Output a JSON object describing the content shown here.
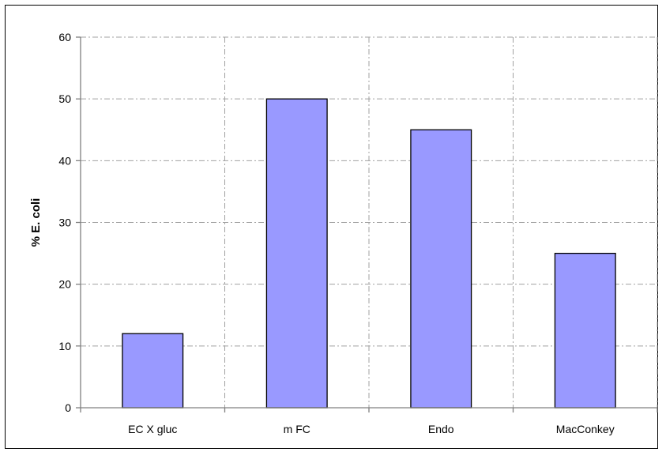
{
  "chart_data": {
    "type": "bar",
    "title": "",
    "xlabel": "",
    "ylabel": "% E. coli",
    "categories": [
      "EC X gluc",
      "m FC",
      "Endo",
      "MacConkey"
    ],
    "series": [
      {
        "values": [
          12,
          50,
          45,
          25
        ]
      }
    ],
    "ylim": [
      0,
      60
    ],
    "yticks": [
      0,
      10,
      20,
      30,
      40,
      50,
      60
    ],
    "grid": true,
    "legend": "none",
    "colors": {
      "bar_fill": "#9999ff",
      "bar_stroke": "#000000",
      "grid": "#a0a0a0",
      "axis": "#808080"
    }
  }
}
